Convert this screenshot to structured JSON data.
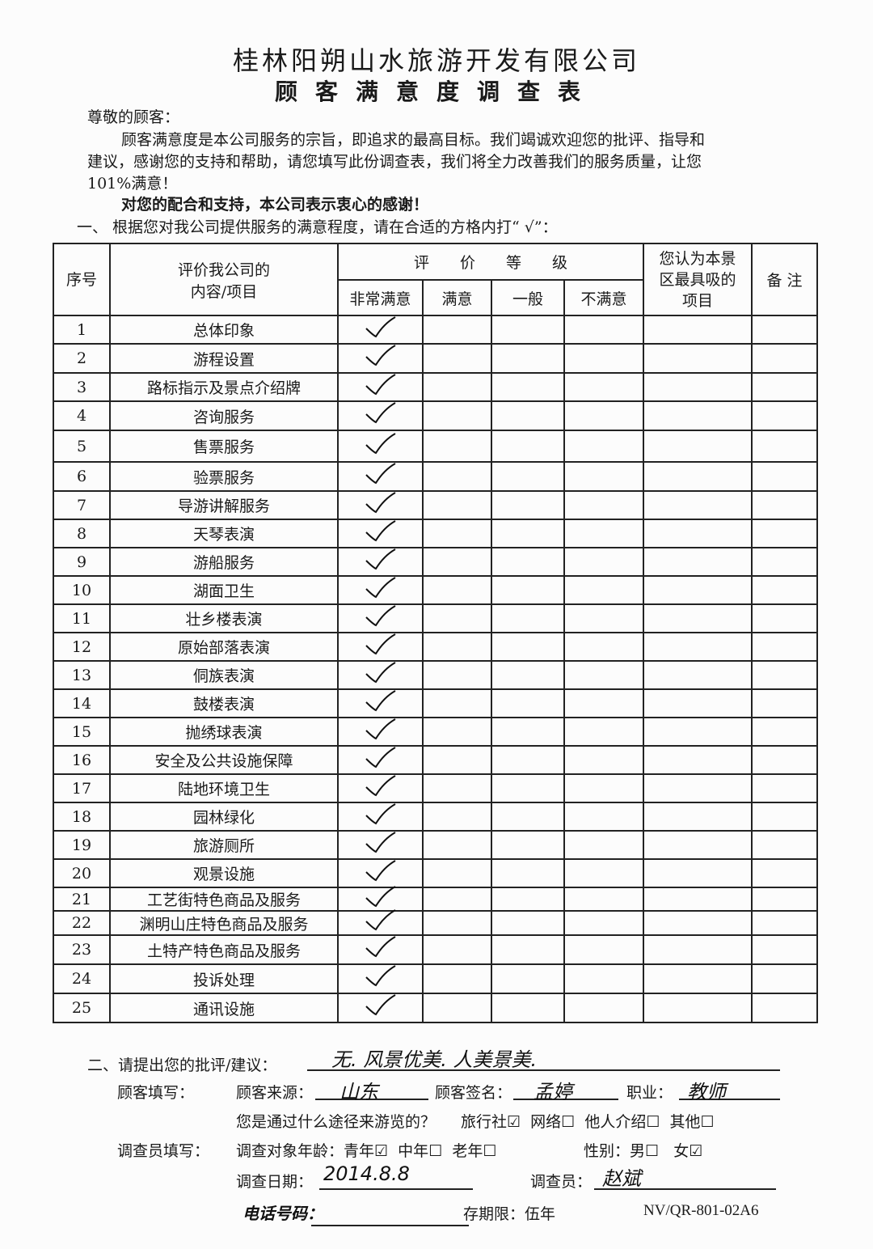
{
  "header": {
    "company": "桂林阳朔山水旅游开发有限公司",
    "title": "顾客满意度调查表"
  },
  "intro": {
    "salutation": "尊敬的顾客：",
    "line1": "顾客满意度是本公司服务的宗旨，即追求的最高目标。我们竭诚欢迎您的批评、指导和",
    "line2": "建议，感谢您的支持和帮助，请您填写此份调查表，我们将全力改善我们的服务质量，让您",
    "line3": "101%满意！",
    "thanks": "对您的配合和支持，本公司表示衷心的感谢！",
    "section1": "一、  根据您对我公司提供服务的满意程度，请在合适的方格内打“ √”："
  },
  "table": {
    "headers": {
      "no": "序号",
      "item": "评价我公司的内容/项目",
      "item_l1": "评价我公司的",
      "item_l2": "内容/项目",
      "rating": "评　　价　　等　　级",
      "levels": [
        "非常满意",
        "满意",
        "一般",
        "不满意"
      ],
      "best": "您认为本景区最具吸的项目",
      "best_l1": "您认为本景",
      "best_l2": "区最具吸的",
      "best_l3": "项目",
      "note": "备 注"
    },
    "rows": [
      {
        "no": "1",
        "item": "总体印象",
        "rating": "非常满意"
      },
      {
        "no": "2",
        "item": "游程设置",
        "rating": "非常满意"
      },
      {
        "no": "3",
        "item": "路标指示及景点介绍牌",
        "rating": "非常满意"
      },
      {
        "no": "4",
        "item": "咨询服务",
        "rating": "非常满意"
      },
      {
        "no": "5",
        "item": "售票服务",
        "rating": "非常满意"
      },
      {
        "no": "6",
        "item": "验票服务",
        "rating": "非常满意"
      },
      {
        "no": "7",
        "item": "导游讲解服务",
        "rating": "非常满意"
      },
      {
        "no": "8",
        "item": "天琴表演",
        "rating": "非常满意"
      },
      {
        "no": "9",
        "item": "游船服务",
        "rating": "非常满意"
      },
      {
        "no": "10",
        "item": "湖面卫生",
        "rating": "非常满意"
      },
      {
        "no": "11",
        "item": "壮乡楼表演",
        "rating": "非常满意"
      },
      {
        "no": "12",
        "item": "原始部落表演",
        "rating": "非常满意"
      },
      {
        "no": "13",
        "item": "侗族表演",
        "rating": "非常满意"
      },
      {
        "no": "14",
        "item": "鼓楼表演",
        "rating": "非常满意"
      },
      {
        "no": "15",
        "item": "抛绣球表演",
        "rating": "非常满意"
      },
      {
        "no": "16",
        "item": "安全及公共设施保障",
        "rating": "非常满意"
      },
      {
        "no": "17",
        "item": "陆地环境卫生",
        "rating": "非常满意"
      },
      {
        "no": "18",
        "item": "园林绿化",
        "rating": "非常满意"
      },
      {
        "no": "19",
        "item": "旅游厕所",
        "rating": "非常满意"
      },
      {
        "no": "20",
        "item": "观景设施",
        "rating": "非常满意"
      },
      {
        "no": "21",
        "item": "工艺街特色商品及服务",
        "rating": "非常满意"
      },
      {
        "no": "22",
        "item": "渊明山庄特色商品及服务",
        "rating": "非常满意"
      },
      {
        "no": "23",
        "item": "土特产特色商品及服务",
        "rating": "非常满意"
      },
      {
        "no": "24",
        "item": "投诉处理",
        "rating": "非常满意"
      },
      {
        "no": "25",
        "item": "通讯设施",
        "rating": "非常满意"
      }
    ]
  },
  "section2": {
    "label": "二、请提出您的批评/建议：",
    "value": "无. 风景优美. 人美景美."
  },
  "customer": {
    "label": "顾客填写：",
    "source_label": "顾客来源：",
    "source": "山东",
    "sign_label": "顾客签名：",
    "sign": "孟婷",
    "job_label": "职业：",
    "job": "教师",
    "channel_q": "您是通过什么途径来游览的？",
    "channels": [
      "旅行社",
      "网络",
      "他人介绍",
      "其他"
    ],
    "channel_selected": "旅行社"
  },
  "surveyor": {
    "label": "调查员填写：",
    "age_label": "调查对象年龄：",
    "ages": [
      "青年",
      "中年",
      "老年"
    ],
    "age_selected": "青年",
    "gender_label": "性别：",
    "genders": [
      "男",
      "女"
    ],
    "gender_selected": "女",
    "date_label": "调查日期：",
    "date": "2014.8.8",
    "surveyor_label": "调查员：",
    "surveyor": "赵斌"
  },
  "footer": {
    "phone_label": "电话号码：",
    "retention": "存期限：伍年",
    "code": "NV/QR-801-02A6"
  }
}
